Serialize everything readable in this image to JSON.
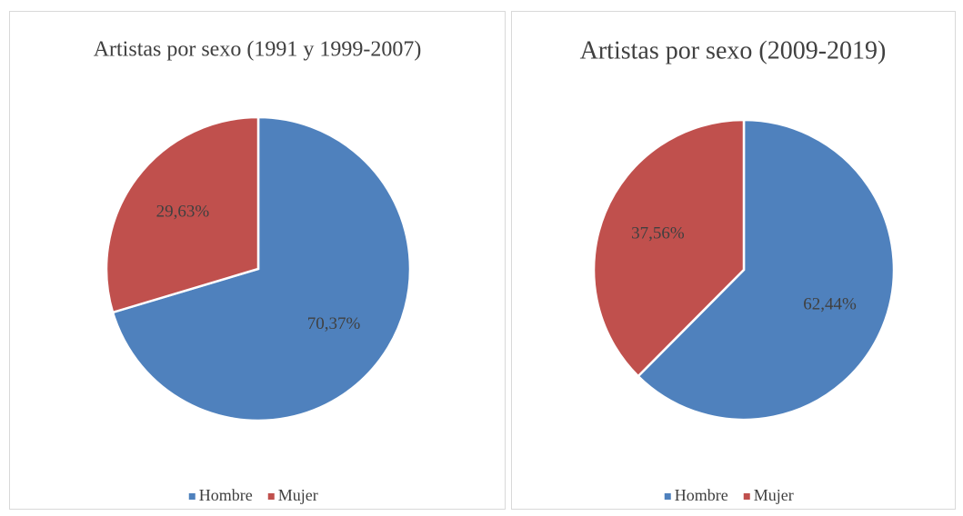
{
  "chart_data": [
    {
      "type": "pie",
      "title": "Artistas por sexo (1991 y 1999-2007)",
      "categories": [
        "Hombre",
        "Mujer"
      ],
      "values": [
        70.37,
        29.63
      ],
      "value_labels": [
        "70,37%",
        "29,63%"
      ],
      "colors": [
        "#4f81bd",
        "#c0504d"
      ]
    },
    {
      "type": "pie",
      "title": "Artistas por sexo (2009-2019)",
      "categories": [
        "Hombre",
        "Mujer"
      ],
      "values": [
        62.44,
        37.56
      ],
      "value_labels": [
        "62,44%",
        "37,56%"
      ],
      "colors": [
        "#4f81bd",
        "#c0504d"
      ]
    }
  ]
}
